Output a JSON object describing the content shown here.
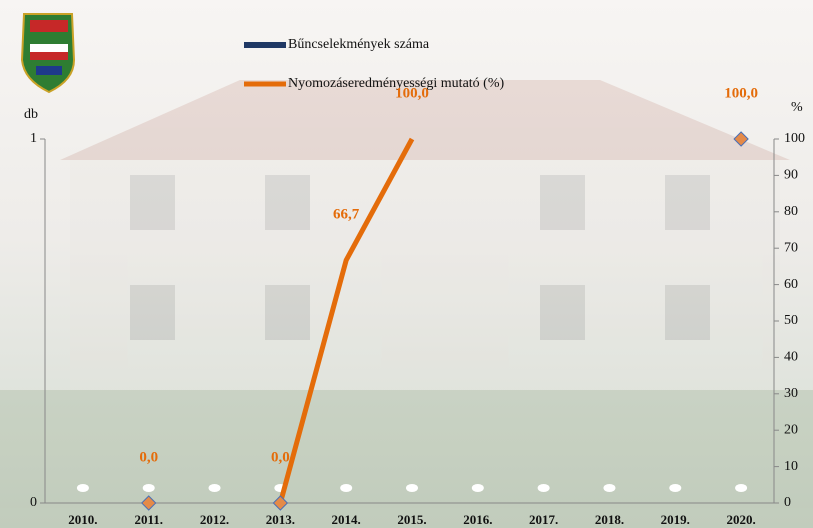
{
  "chart_data": {
    "type": "bar-line",
    "categories": [
      "2010.",
      "2011.",
      "2012.",
      "2013.",
      "2014.",
      "2015.",
      "2016.",
      "2017.",
      "2018.",
      "2019.",
      "2020."
    ],
    "y_label": "db",
    "y2_label": "%",
    "ylim": [
      0,
      1
    ],
    "yticks": [
      0,
      1
    ],
    "y2lim": [
      0,
      100
    ],
    "y2ticks": [
      0,
      10,
      20,
      30,
      40,
      50,
      60,
      70,
      80,
      90,
      100
    ],
    "series": [
      {
        "name": "Bűncselekmények száma",
        "type": "bar",
        "color": "#1f3864",
        "values": [
          0,
          0,
          0,
          0,
          0,
          0,
          0,
          0,
          0,
          0,
          0
        ]
      },
      {
        "name": "Nyomozáseredményességi mutató (%)",
        "type": "line",
        "axis": "y2",
        "color": "#e46c0a",
        "values": [
          null,
          0,
          null,
          0,
          66.7,
          100,
          null,
          null,
          null,
          null,
          100
        ],
        "value_labels": [
          null,
          "0,0",
          null,
          "0,0",
          "66,7",
          "100,0",
          null,
          null,
          null,
          null,
          "100,0"
        ]
      }
    ]
  }
}
